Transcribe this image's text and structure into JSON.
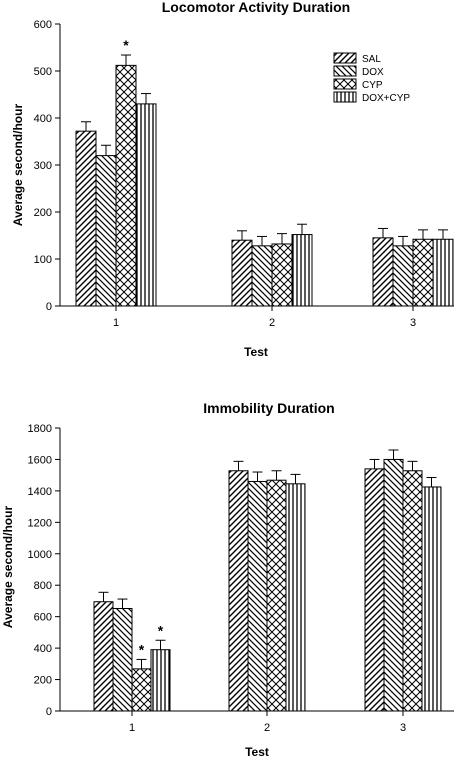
{
  "chart_data": [
    {
      "type": "bar",
      "title": "Locomotor Activity Duration",
      "xlabel": "Test",
      "ylabel": "Average second/hour",
      "categories": [
        "1",
        "2",
        "3"
      ],
      "ylim": [
        0,
        600
      ],
      "yticks": [
        0,
        100,
        200,
        300,
        400,
        500,
        600
      ],
      "legend_position": "top-right",
      "series": [
        {
          "name": "SAL",
          "values": [
            372,
            140,
            145
          ],
          "errors": [
            20,
            20,
            20
          ],
          "pattern": "diag-right"
        },
        {
          "name": "DOX",
          "values": [
            320,
            128,
            128
          ],
          "errors": [
            22,
            20,
            20
          ],
          "pattern": "diag-left"
        },
        {
          "name": "CYP",
          "values": [
            512,
            132,
            142
          ],
          "errors": [
            22,
            22,
            20
          ],
          "pattern": "cross"
        },
        {
          "name": "DOX+CYP",
          "values": [
            430,
            152,
            142
          ],
          "errors": [
            22,
            22,
            20
          ],
          "pattern": "vertical"
        }
      ],
      "annotations": [
        {
          "text": "*",
          "category": "1",
          "series": "CYP"
        }
      ]
    },
    {
      "type": "bar",
      "title": "Immobility Duration",
      "xlabel": "Test",
      "ylabel": "Average second/hour",
      "categories": [
        "1",
        "2",
        "3"
      ],
      "ylim": [
        0,
        1800
      ],
      "yticks": [
        0,
        200,
        400,
        600,
        800,
        1000,
        1200,
        1400,
        1600,
        1800
      ],
      "series": [
        {
          "name": "SAL",
          "values": [
            695,
            1528,
            1540
          ],
          "errors": [
            60,
            60,
            60
          ],
          "pattern": "diag-right"
        },
        {
          "name": "DOX",
          "values": [
            652,
            1460,
            1600
          ],
          "errors": [
            60,
            60,
            60
          ],
          "pattern": "diag-left"
        },
        {
          "name": "CYP",
          "values": [
            268,
            1468,
            1528
          ],
          "errors": [
            60,
            60,
            60
          ],
          "pattern": "cross"
        },
        {
          "name": "DOX+CYP",
          "values": [
            390,
            1445,
            1425
          ],
          "errors": [
            60,
            60,
            60
          ],
          "pattern": "vertical"
        }
      ],
      "annotations": [
        {
          "text": "*",
          "category": "1",
          "series": "CYP"
        },
        {
          "text": "*",
          "category": "1",
          "series": "DOX+CYP"
        }
      ]
    }
  ]
}
